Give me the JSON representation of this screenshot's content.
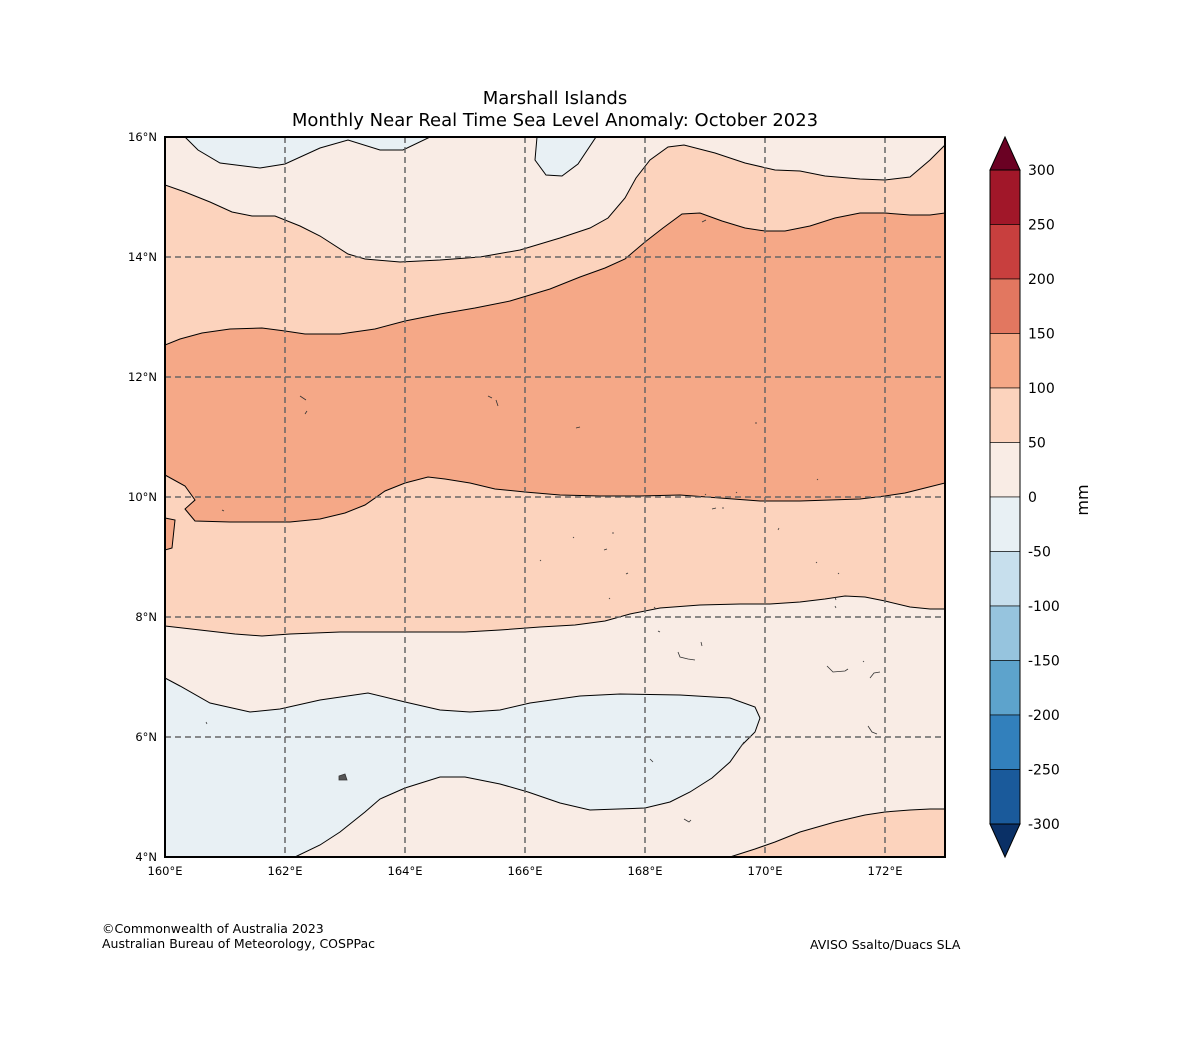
{
  "title": {
    "line1": "Marshall Islands",
    "line2": "Monthly Near Real Time Sea Level Anomaly: October 2023"
  },
  "map": {
    "lon_ticks": [
      "160°E",
      "162°E",
      "164°E",
      "166°E",
      "168°E",
      "170°E",
      "172°E"
    ],
    "lat_ticks": [
      "16°N",
      "14°N",
      "12°N",
      "10°N",
      "8°N",
      "6°N",
      "4°N"
    ],
    "lon_range_deg": [
      160,
      173
    ],
    "lat_range_deg": [
      4,
      16
    ],
    "anomaly_classes": [
      {
        "range": "-50 to 0",
        "color": "#e8f0f4"
      },
      {
        "range": "0 to 50",
        "color": "#f9ece5"
      },
      {
        "range": "50 to 100",
        "color": "#fcd3bd"
      },
      {
        "range": "100 to 150",
        "color": "#f5a887"
      }
    ]
  },
  "colorbar": {
    "unit": "mm",
    "ticks": [
      "300",
      "250",
      "200",
      "150",
      "100",
      "50",
      "0",
      "-50",
      "-100",
      "-150",
      "-200",
      "-250",
      "-300"
    ],
    "colors": [
      "#a11729",
      "#c83f3e",
      "#e27760",
      "#f5a887",
      "#fcd3bd",
      "#f9ece5",
      "#e8f0f4",
      "#c7dfed",
      "#96c4de",
      "#5da3cc",
      "#3280bc",
      "#1a5a9b"
    ],
    "over_color": "#6a0123",
    "under_color": "#0a3066"
  },
  "footer": {
    "copyright": "©Commonwealth of Australia 2023",
    "agency": "Australian Bureau of Meteorology, COSPPac",
    "source": "AVISO Ssalto/Duacs SLA"
  }
}
